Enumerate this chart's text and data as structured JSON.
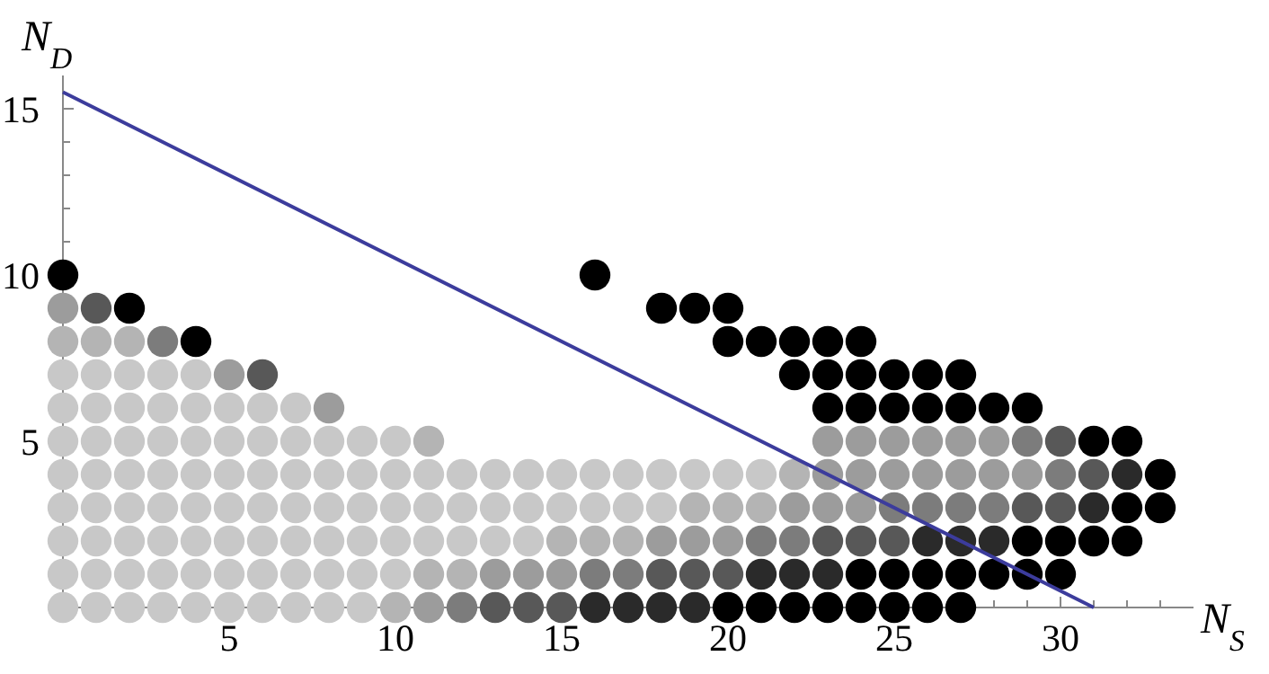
{
  "chart_data": {
    "type": "scatter",
    "xlabel": "N$_{S}$",
    "ylabel": "N$_{D}$",
    "marker": "circle",
    "xlim": [
      0,
      34
    ],
    "ylim": [
      0,
      16
    ],
    "xticks": [
      {
        "value": 1,
        "label": null
      },
      {
        "value": 2,
        "label": null
      },
      {
        "value": 3,
        "label": null
      },
      {
        "value": 4,
        "label": null
      },
      5,
      {
        "value": 6,
        "label": null
      },
      {
        "value": 7,
        "label": null
      },
      {
        "value": 8,
        "label": null
      },
      {
        "value": 9,
        "label": null
      },
      10,
      {
        "value": 11,
        "label": null
      },
      {
        "value": 12,
        "label": null
      },
      {
        "value": 13,
        "label": null
      },
      {
        "value": 14,
        "label": null
      },
      15,
      {
        "value": 16,
        "label": null
      },
      {
        "value": 17,
        "label": null
      },
      {
        "value": 18,
        "label": null
      },
      {
        "value": 19,
        "label": null
      },
      20,
      {
        "value": 21,
        "label": null
      },
      {
        "value": 22,
        "label": null
      },
      {
        "value": 23,
        "label": null
      },
      {
        "value": 24,
        "label": null
      },
      25,
      {
        "value": 26,
        "label": null
      },
      {
        "value": 27,
        "label": null
      },
      {
        "value": 28,
        "label": null
      },
      {
        "value": 29,
        "label": null
      },
      30,
      {
        "value": 31,
        "label": null
      },
      {
        "value": 32,
        "label": null
      },
      {
        "value": 33,
        "label": null
      }
    ],
    "yticks": [
      {
        "value": 1,
        "label": null
      },
      {
        "value": 2,
        "label": null
      },
      {
        "value": 3,
        "label": null
      },
      {
        "value": 4,
        "label": null
      },
      5,
      {
        "value": 6,
        "label": null
      },
      {
        "value": 7,
        "label": null
      },
      {
        "value": 8,
        "label": null
      },
      {
        "value": 9,
        "label": null
      },
      10,
      {
        "value": 11,
        "label": null
      },
      {
        "value": 12,
        "label": null
      },
      {
        "value": 13,
        "label": null
      },
      {
        "value": 14,
        "label": null
      },
      15
    ],
    "series": [
      {
        "color": "#c8c8c8",
        "x": [
          0,
          1,
          2,
          3,
          4,
          5,
          6,
          7,
          8,
          9,
          0,
          1,
          2,
          3,
          4,
          5,
          6,
          7,
          8,
          9,
          10,
          0,
          1,
          2,
          3,
          4,
          5,
          6,
          7,
          8,
          9,
          10,
          11,
          12,
          13,
          14,
          0,
          1,
          2,
          3,
          4,
          5,
          6,
          7,
          8,
          9,
          10,
          11,
          12,
          13,
          14,
          15,
          16,
          17,
          18,
          0,
          1,
          2,
          3,
          4,
          5,
          6,
          7,
          8,
          9,
          10,
          11,
          12,
          13,
          14,
          15,
          16,
          17,
          18,
          19,
          20,
          21,
          0,
          1,
          2,
          3,
          4,
          5,
          6,
          7,
          8,
          9,
          10,
          0,
          1,
          2,
          3,
          4,
          5,
          6,
          7,
          0,
          1,
          2,
          3,
          4
        ],
        "values": [
          0,
          0,
          0,
          0,
          0,
          0,
          0,
          0,
          0,
          0,
          1,
          1,
          1,
          1,
          1,
          1,
          1,
          1,
          1,
          1,
          1,
          2,
          2,
          2,
          2,
          2,
          2,
          2,
          2,
          2,
          2,
          2,
          2,
          2,
          2,
          2,
          3,
          3,
          3,
          3,
          3,
          3,
          3,
          3,
          3,
          3,
          3,
          3,
          3,
          3,
          3,
          3,
          3,
          3,
          3,
          4,
          4,
          4,
          4,
          4,
          4,
          4,
          4,
          4,
          4,
          4,
          4,
          4,
          4,
          4,
          4,
          4,
          4,
          4,
          4,
          4,
          4,
          5,
          5,
          5,
          5,
          5,
          5,
          5,
          5,
          5,
          5,
          5,
          6,
          6,
          6,
          6,
          6,
          6,
          6,
          6,
          7,
          7,
          7,
          7,
          7
        ]
      },
      {
        "color": "#b4b4b4",
        "x": [
          10,
          11,
          12,
          15,
          16,
          17,
          19,
          20,
          21,
          22,
          11,
          0,
          1,
          2
        ],
        "values": [
          0,
          1,
          1,
          2,
          2,
          2,
          3,
          3,
          3,
          4,
          5,
          8,
          8,
          8
        ]
      },
      {
        "color": "#9c9c9c",
        "x": [
          11,
          13,
          14,
          15,
          18,
          19,
          20,
          22,
          23,
          24,
          23,
          24,
          25,
          26,
          27,
          28,
          29,
          23,
          24,
          25,
          26,
          27,
          28,
          8,
          5,
          0
        ],
        "values": [
          0,
          1,
          1,
          1,
          2,
          2,
          2,
          3,
          3,
          3,
          4,
          4,
          4,
          4,
          4,
          4,
          4,
          5,
          5,
          5,
          5,
          5,
          5,
          6,
          7,
          9
        ]
      },
      {
        "color": "#7c7c7c",
        "x": [
          12,
          16,
          17,
          21,
          22,
          25,
          26,
          27,
          28,
          30,
          29,
          3
        ],
        "values": [
          0,
          1,
          1,
          2,
          2,
          3,
          3,
          3,
          3,
          4,
          5,
          8
        ]
      },
      {
        "color": "#585858",
        "x": [
          13,
          14,
          15,
          18,
          19,
          20,
          23,
          24,
          25,
          29,
          30,
          31,
          30,
          6,
          1
        ],
        "values": [
          0,
          0,
          0,
          1,
          1,
          1,
          2,
          2,
          2,
          3,
          3,
          4,
          5,
          7,
          9
        ]
      },
      {
        "color": "#2a2a2a",
        "x": [
          16,
          17,
          18,
          19,
          21,
          22,
          23,
          26,
          27,
          28,
          31,
          32
        ],
        "values": [
          0,
          0,
          0,
          0,
          1,
          1,
          1,
          2,
          2,
          2,
          3,
          4
        ]
      },
      {
        "color": "#000000",
        "x": [
          20,
          21,
          22,
          23,
          24,
          25,
          26,
          27,
          24,
          25,
          26,
          27,
          28,
          29,
          30,
          29,
          30,
          31,
          32,
          32,
          33,
          33,
          31,
          32,
          23,
          24,
          25,
          26,
          27,
          28,
          29,
          22,
          23,
          24,
          25,
          26,
          27,
          4,
          20,
          21,
          22,
          23,
          24,
          2,
          18,
          19,
          20,
          0,
          16
        ],
        "values": [
          0,
          0,
          0,
          0,
          0,
          0,
          0,
          0,
          1,
          1,
          1,
          1,
          1,
          1,
          1,
          2,
          2,
          2,
          2,
          3,
          3,
          4,
          5,
          5,
          6,
          6,
          6,
          6,
          6,
          6,
          6,
          7,
          7,
          7,
          7,
          7,
          7,
          8,
          8,
          8,
          8,
          8,
          8,
          9,
          9,
          9,
          9,
          10,
          10
        ]
      },
      {
        "type": "line",
        "marker": "none",
        "color": "#3c3c9c",
        "x": [
          0,
          31
        ],
        "values": [
          15.5,
          0
        ]
      }
    ]
  }
}
